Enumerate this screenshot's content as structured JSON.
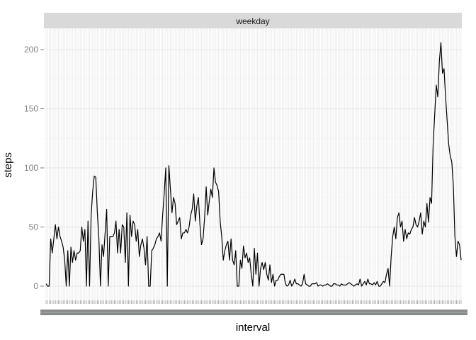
{
  "chart_data": {
    "type": "line",
    "facet": "weekday",
    "xlabel": "interval",
    "ylabel": "steps",
    "ylim": [
      -12,
      218
    ],
    "y_ticks": [
      0,
      50,
      100,
      150,
      200
    ],
    "x_tick_labels": "288 crowded, unreadable 5-minute interval labels",
    "grid": true,
    "legend": "none",
    "colors": {
      "line": "#000000",
      "panel_bg": "#ffffff",
      "grid": "#ebebeb",
      "strip_bg": "#d9d9d9",
      "tick_text": "#7f7f7f"
    },
    "series": [
      {
        "values": [
          2,
          0,
          0,
          40,
          28,
          40,
          52,
          40,
          50,
          42,
          38,
          33,
          22,
          0,
          30,
          0,
          33,
          20,
          30,
          22,
          28,
          28,
          30,
          50,
          38,
          48,
          0,
          55,
          0,
          60,
          80,
          93,
          92,
          62,
          40,
          0,
          35,
          25,
          45,
          65,
          0,
          42,
          42,
          42,
          45,
          55,
          28,
          48,
          28,
          52,
          50,
          20,
          62,
          0,
          60,
          42,
          55,
          52,
          38,
          48,
          25,
          35,
          40,
          32,
          18,
          42,
          0,
          0,
          30,
          32,
          35,
          40,
          42,
          45,
          38,
          60,
          78,
          100,
          0,
          102,
          82,
          62,
          75,
          70,
          52,
          55,
          58,
          40,
          45,
          45,
          48,
          45,
          50,
          60,
          65,
          78,
          55,
          68,
          75,
          52,
          35,
          40,
          58,
          84,
          60,
          72,
          82,
          75,
          100,
          88,
          85,
          80,
          55,
          42,
          22,
          30,
          35,
          38,
          22,
          40,
          22,
          18,
          30,
          0,
          0,
          22,
          15,
          34,
          24,
          28,
          20,
          24,
          10,
          0,
          32,
          10,
          28,
          0,
          15,
          20,
          14,
          20,
          10,
          5,
          18,
          3,
          10,
          0,
          5,
          5,
          8,
          10,
          10,
          10,
          2,
          0,
          1,
          5,
          0,
          2,
          6,
          2,
          2,
          1,
          0,
          2,
          10,
          2,
          1,
          0,
          0,
          2,
          2,
          2,
          3,
          0,
          1,
          1,
          0,
          1,
          1,
          2,
          1,
          0,
          0,
          2,
          2,
          1,
          1,
          0,
          2,
          1,
          1,
          1,
          2,
          3,
          2,
          1,
          0,
          1,
          2,
          1,
          6,
          0,
          2,
          4,
          1,
          6,
          2,
          2,
          1,
          3,
          1,
          4,
          0,
          0,
          2,
          4,
          3,
          10,
          15,
          0,
          25,
          42,
          50,
          40,
          58,
          62,
          50,
          55,
          38,
          48,
          40,
          45,
          44,
          48,
          50,
          58,
          52,
          50,
          55,
          62,
          44,
          55,
          50,
          70,
          54,
          75,
          70,
          120,
          145,
          170,
          160,
          190,
          206,
          180,
          184,
          160,
          140,
          120,
          110,
          105,
          85,
          42,
          25,
          38,
          35,
          22
        ]
      }
    ]
  }
}
